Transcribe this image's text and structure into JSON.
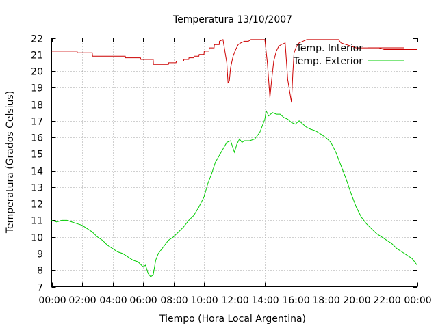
{
  "chart_data": {
    "type": "line",
    "title": "Temperatura 13/10/2007",
    "xlabel": "Tiempo (Hora Local Argentina)",
    "ylabel": "Temperatura (Grados Celsius)",
    "xlim": [
      "00:00",
      "24:00"
    ],
    "ylim": [
      7,
      22
    ],
    "x_ticks": [
      "00:00",
      "02:00",
      "04:00",
      "06:00",
      "08:00",
      "10:00",
      "12:00",
      "14:00",
      "16:00",
      "18:00",
      "20:00",
      "22:00",
      "00:00"
    ],
    "y_ticks": [
      7,
      8,
      9,
      10,
      11,
      12,
      13,
      14,
      15,
      16,
      17,
      18,
      19,
      20,
      21,
      22
    ],
    "grid": true,
    "legend_position": "top-right",
    "series": [
      {
        "name": "Temp. Interior",
        "color": "#cc0000",
        "x": [
          "00:00",
          "01:40",
          "01:41",
          "02:40",
          "02:41",
          "04:50",
          "04:51",
          "05:50",
          "05:51",
          "06:40",
          "06:41",
          "07:40",
          "07:41",
          "08:10",
          "08:11",
          "08:40",
          "08:41",
          "09:00",
          "09:01",
          "09:20",
          "09:21",
          "09:40",
          "09:41",
          "10:00",
          "10:01",
          "10:20",
          "10:21",
          "10:40",
          "10:41",
          "11:00",
          "11:01",
          "11:15",
          "11:30",
          "11:35",
          "11:40",
          "11:45",
          "11:55",
          "12:05",
          "12:15",
          "12:25",
          "12:40",
          "12:55",
          "13:05",
          "13:20",
          "13:40",
          "14:00",
          "14:10",
          "14:20",
          "14:27",
          "14:35",
          "14:45",
          "14:55",
          "15:05",
          "15:20",
          "15:30",
          "15:45",
          "15:50",
          "15:55",
          "16:05",
          "16:15",
          "16:30",
          "16:45",
          "17:00",
          "17:30",
          "18:00",
          "18:30",
          "18:50",
          "19:00",
          "19:20",
          "19:40",
          "20:00",
          "21:00",
          "21:30",
          "21:50",
          "22:00",
          "24:00"
        ],
        "values": [
          21.2,
          21.2,
          21.1,
          21.1,
          20.9,
          20.9,
          20.8,
          20.8,
          20.7,
          20.7,
          20.4,
          20.4,
          20.5,
          20.5,
          20.6,
          20.6,
          20.7,
          20.7,
          20.8,
          20.8,
          20.9,
          20.9,
          21.0,
          21.0,
          21.2,
          21.2,
          21.4,
          21.4,
          21.6,
          21.6,
          21.8,
          21.9,
          20.5,
          19.3,
          19.4,
          20.2,
          20.9,
          21.3,
          21.6,
          21.7,
          21.8,
          21.8,
          21.9,
          21.9,
          21.9,
          21.9,
          20.5,
          18.4,
          19.5,
          20.6,
          21.2,
          21.5,
          21.6,
          21.7,
          19.5,
          18.1,
          19.8,
          21.1,
          21.5,
          21.7,
          21.8,
          21.9,
          21.9,
          21.9,
          21.9,
          21.9,
          21.9,
          21.7,
          21.6,
          21.5,
          21.4,
          21.4,
          21.4,
          21.3,
          21.3,
          21.3
        ]
      },
      {
        "name": "Temp. Exterior",
        "color": "#00cc00",
        "x": [
          "00:00",
          "00:20",
          "00:40",
          "01:00",
          "01:20",
          "01:40",
          "02:00",
          "02:20",
          "02:40",
          "03:00",
          "03:20",
          "03:40",
          "04:00",
          "04:20",
          "04:40",
          "05:00",
          "05:20",
          "05:40",
          "06:00",
          "06:10",
          "06:20",
          "06:30",
          "06:40",
          "06:50",
          "07:00",
          "07:20",
          "07:40",
          "08:00",
          "08:20",
          "08:40",
          "09:00",
          "09:20",
          "09:40",
          "10:00",
          "10:15",
          "10:30",
          "10:45",
          "11:00",
          "11:15",
          "11:30",
          "11:45",
          "12:00",
          "12:10",
          "12:20",
          "12:30",
          "12:40",
          "13:00",
          "13:20",
          "13:40",
          "14:00",
          "14:05",
          "14:15",
          "14:30",
          "14:45",
          "15:00",
          "15:15",
          "15:30",
          "15:45",
          "16:00",
          "16:15",
          "16:30",
          "16:45",
          "17:00",
          "17:20",
          "17:40",
          "18:00",
          "18:20",
          "18:40",
          "19:00",
          "19:20",
          "19:40",
          "20:00",
          "20:20",
          "20:40",
          "21:00",
          "21:20",
          "21:40",
          "22:00",
          "22:20",
          "22:40",
          "23:00",
          "23:20",
          "23:40",
          "24:00"
        ],
        "values": [
          11.0,
          10.9,
          11.0,
          11.0,
          10.9,
          10.8,
          10.7,
          10.5,
          10.3,
          10.0,
          9.8,
          9.5,
          9.3,
          9.1,
          9.0,
          8.8,
          8.6,
          8.5,
          8.2,
          8.3,
          7.8,
          7.6,
          7.7,
          8.6,
          9.0,
          9.4,
          9.8,
          10.0,
          10.3,
          10.6,
          11.0,
          11.3,
          11.8,
          12.4,
          13.2,
          13.8,
          14.5,
          14.9,
          15.3,
          15.7,
          15.8,
          15.1,
          15.6,
          15.9,
          15.7,
          15.8,
          15.8,
          15.9,
          16.3,
          17.1,
          17.6,
          17.3,
          17.5,
          17.4,
          17.4,
          17.2,
          17.1,
          16.9,
          16.8,
          17.0,
          16.8,
          16.6,
          16.5,
          16.4,
          16.2,
          16.0,
          15.7,
          15.1,
          14.3,
          13.5,
          12.6,
          11.8,
          11.2,
          10.8,
          10.5,
          10.2,
          10.0,
          9.8,
          9.6,
          9.3,
          9.1,
          8.9,
          8.7,
          8.3
        ]
      }
    ]
  }
}
